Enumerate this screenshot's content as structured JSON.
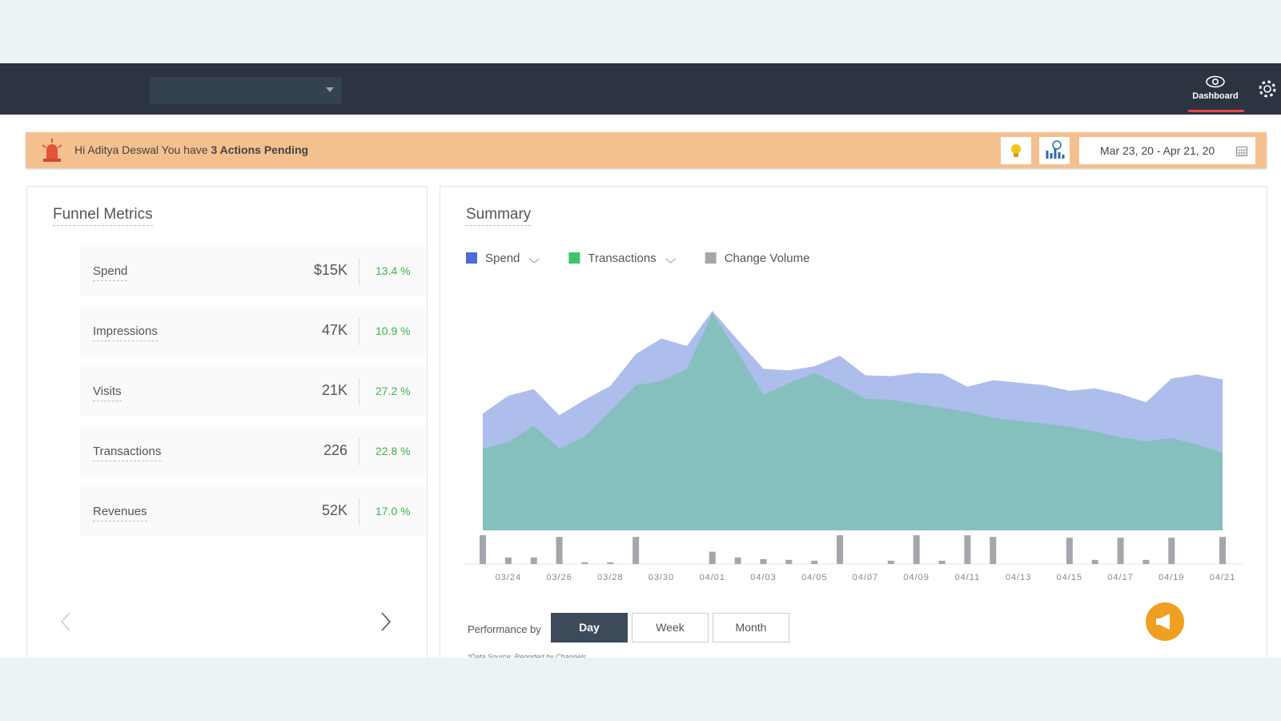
{
  "nav": {
    "tab": "Dashboard"
  },
  "banner": {
    "greeting": "Hi Aditya Deswal You have",
    "actions": "3 Actions Pending",
    "date_range": "Mar 23, 20 - Apr 21, 20"
  },
  "funnel": {
    "title": "Funnel Metrics",
    "rows": [
      {
        "label": "Spend",
        "value": "$15K",
        "change": "13.4 %"
      },
      {
        "label": "Impressions",
        "value": "47K",
        "change": "10.9 %"
      },
      {
        "label": "Visits",
        "value": "21K",
        "change": "27.2 %"
      },
      {
        "label": "Transactions",
        "value": "226",
        "change": "22.8 %"
      },
      {
        "label": "Revenues",
        "value": "52K",
        "change": "17.0 %"
      }
    ]
  },
  "summary": {
    "title": "Summary",
    "performance_label": "Performance by",
    "buttons": [
      "Day",
      "Week",
      "Month"
    ],
    "footnote": "*Data Source: Reported by Channels"
  },
  "chart_data": {
    "type": "area",
    "categories": [
      null,
      "03/24",
      null,
      "03/26",
      null,
      "03/28",
      null,
      "03/30",
      null,
      "04/01",
      null,
      "04/03",
      null,
      "04/05",
      null,
      "04/07",
      null,
      "04/09",
      null,
      "04/11",
      null,
      "04/13",
      null,
      "04/15",
      null,
      "04/17",
      null,
      "04/19",
      null,
      "04/21"
    ],
    "ylim": [
      0,
      270
    ],
    "y2lim": [
      0,
      40
    ],
    "series": [
      {
        "name": "Spend",
        "color": "#4a6cd4",
        "values": [
          143,
          165,
          173,
          141,
          160,
          177,
          216,
          235,
          226,
          269,
          233,
          198,
          196,
          201,
          214,
          190,
          189,
          193,
          192,
          176,
          184,
          181,
          178,
          171,
          174,
          167,
          157,
          186,
          191,
          185
        ]
      },
      {
        "name": "Transactions",
        "color": "#3cc46a",
        "values": [
          100,
          108,
          128,
          100,
          115,
          146,
          178,
          183,
          198,
          266,
          218,
          166,
          180,
          193,
          178,
          161,
          160,
          155,
          150,
          145,
          138,
          134,
          131,
          127,
          121,
          114,
          109,
          113,
          105,
          95
        ]
      },
      {
        "name": "Change Volume",
        "color": "#a3a7ab",
        "axis": "y2",
        "values": [
          35,
          8,
          8,
          33,
          2,
          2,
          33,
          0,
          0,
          15,
          8,
          6,
          5,
          4,
          35,
          0,
          4,
          35,
          4,
          35,
          33,
          0,
          0,
          32,
          5,
          32,
          5,
          32,
          0,
          33
        ]
      }
    ]
  }
}
